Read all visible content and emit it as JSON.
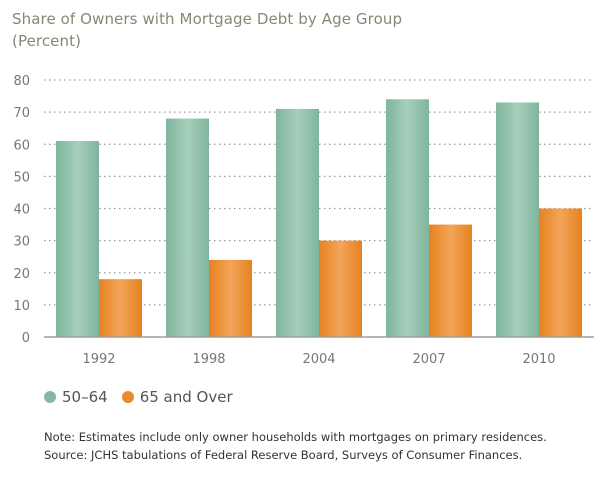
{
  "title_line1": "Share of Owners with Mortgage Debt by Age Group",
  "title_line2": "(Percent)",
  "colors": {
    "series_50_64": "#82b9a0",
    "series_65_over": "#e98a2c",
    "grid": "#9a9a9a",
    "tick": "#777777"
  },
  "legend": [
    {
      "label": "50–64"
    },
    {
      "label": "65 and Over"
    }
  ],
  "note_line1": "Note: Estimates include only owner households with mortgages on primary residences.",
  "note_line2": "Source: JCHS tabulations of Federal Reserve Board, Surveys of Consumer Finances.",
  "chart_data": {
    "type": "bar",
    "title": "Share of Owners with Mortgage Debt by Age Group",
    "subtitle": "(Percent)",
    "categories": [
      "1992",
      "1998",
      "2004",
      "2007",
      "2010"
    ],
    "series": [
      {
        "name": "50–64",
        "values": [
          61,
          68,
          71,
          74,
          73
        ]
      },
      {
        "name": "65 and Over",
        "values": [
          18,
          24,
          30,
          35,
          40
        ]
      }
    ],
    "ylim": [
      0,
      80
    ],
    "yticks": [
      0,
      10,
      20,
      30,
      40,
      50,
      60,
      70,
      80
    ],
    "grid": true,
    "legend_position": "bottom-left"
  }
}
